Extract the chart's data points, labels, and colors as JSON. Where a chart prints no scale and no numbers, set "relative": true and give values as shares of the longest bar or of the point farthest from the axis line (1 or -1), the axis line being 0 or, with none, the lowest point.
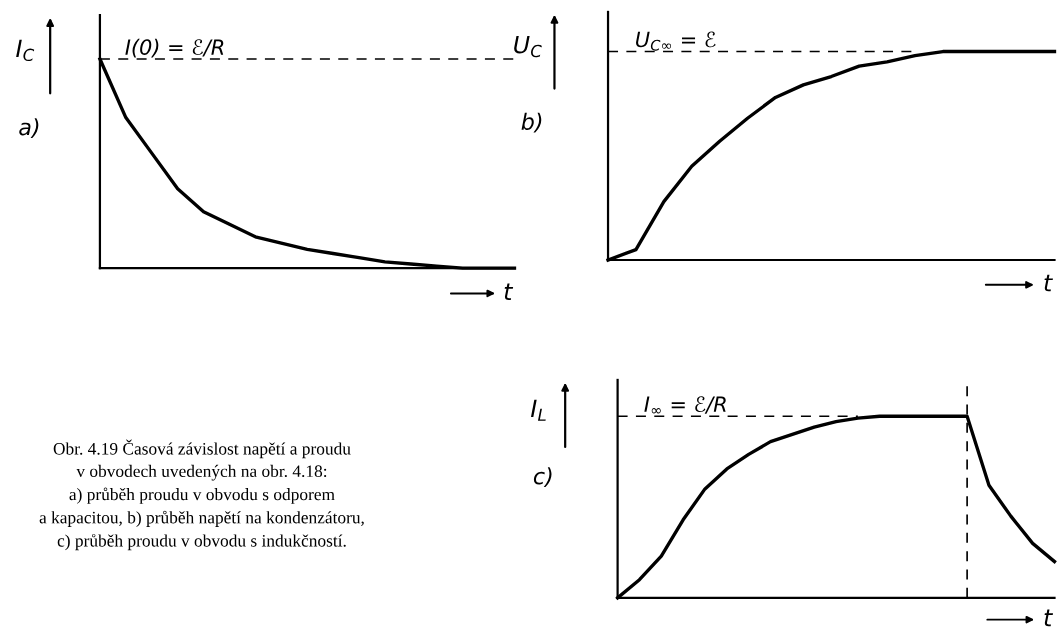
{
  "chart_data": [
    {
      "type": "line",
      "title": "a)",
      "ylabel": "I$_{C}$",
      "xlabel": "t",
      "relative": true,
      "categories": [
        null,
        null,
        null,
        null,
        null,
        null,
        null,
        null,
        null,
        null,
        null,
        null,
        null,
        null,
        null,
        null,
        null
      ],
      "series": [
        {
          "color": "#000000",
          "values": [
            1,
            0.72,
            0.55,
            0.38,
            0.27,
            0.21,
            0.15,
            0.12,
            0.09,
            0.07,
            0.05,
            0.03,
            0.02,
            0.01,
            0,
            0,
            0
          ]
        }
      ],
      "ref_lines": [
        {
          "axis": "y",
          "value": 1,
          "label": "I(0) = ℰ/R",
          "line_style": "dashed",
          "color": "#000000"
        }
      ],
      "annotations": [
        "Obr. 4.19 Časová závislost napětí a proudu\nv obvodech uvedených na obr. 4.18:\na) průběh proudu v obvodu s odporem\na kapacitou, b) průběh napětí na kondenzátoru,\nc) průběh proudu v obvodu s indukčností."
      ]
    },
    {
      "type": "line",
      "title": "b)",
      "ylabel": "U$_{C}$",
      "xlabel": "t",
      "relative": true,
      "categories": [
        null,
        null,
        null,
        null,
        null,
        null,
        null,
        null,
        null,
        null,
        null,
        null,
        null,
        null,
        null,
        null,
        null
      ],
      "series": [
        {
          "color": "#000000",
          "values": [
            0,
            0.05,
            0.28,
            0.45,
            0.57,
            0.68,
            0.78,
            0.84,
            0.88,
            0.93,
            0.95,
            0.98,
            1,
            1,
            1,
            1,
            1
          ]
        }
      ],
      "ref_lines": [
        {
          "axis": "y",
          "value": 1,
          "label": "U$_{C∞}$ = ℰ",
          "line_style": "dashed",
          "color": "#000000"
        }
      ]
    },
    {
      "type": "line",
      "title": "c)",
      "ylabel": "I$_{L}$",
      "xlabel": "t",
      "relative": true,
      "categories": [
        null,
        null,
        null,
        null,
        null,
        null,
        null,
        null,
        null,
        null,
        null,
        null,
        null,
        null,
        null,
        null,
        null,
        null,
        null,
        null,
        null
      ],
      "series": [
        {
          "color": "#000000",
          "values": [
            0,
            0.1,
            0.23,
            0.43,
            0.6,
            0.71,
            0.79,
            0.86,
            0.9,
            0.94,
            0.97,
            0.99,
            1,
            1,
            1,
            1,
            1,
            0.62,
            0.45,
            0.3,
            0.2
          ]
        }
      ],
      "ref_lines": [
        {
          "axis": "y",
          "value": 1,
          "label": "I$_{∞}$ = ℰ/R",
          "line_style": "dashed",
          "color": "#000000"
        }
      ]
    }
  ]
}
